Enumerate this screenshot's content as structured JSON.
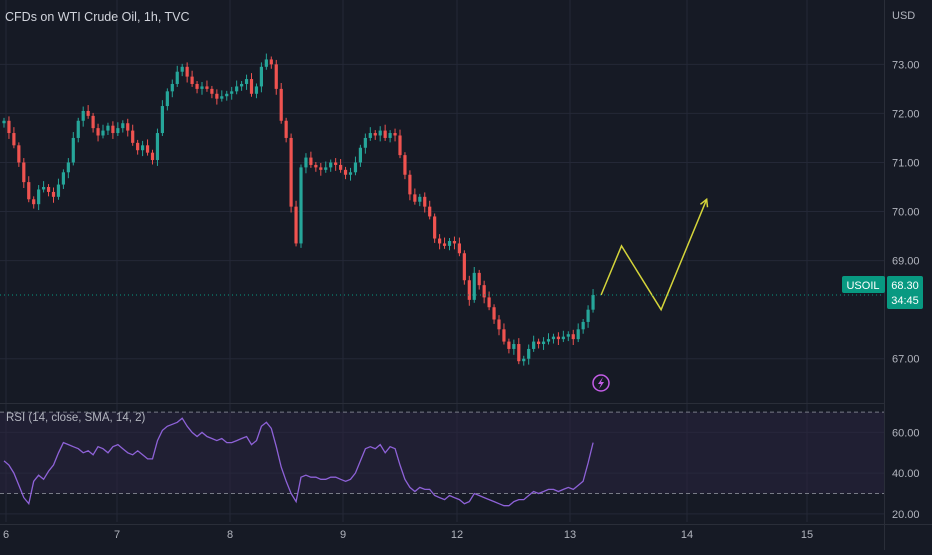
{
  "header": {
    "title": "CFDs on WTI Crude Oil, 1h, TVC"
  },
  "price_axis": {
    "currency": "USD"
  },
  "current_price": {
    "symbol": "USOIL",
    "value": "68.30",
    "countdown": "34:45"
  },
  "rsi_panel": {
    "label": "RSI (14, close, SMA, 14, 2)"
  },
  "colors": {
    "background": "#161a25",
    "grid": "#242837",
    "up": "#26a69a",
    "down": "#ef5350",
    "rsi_line": "#8e62d8",
    "rsi_band": "#2a2440",
    "projection": "#d4d43a",
    "axis_text": "#b2b5be",
    "price_tag": "#089981"
  },
  "chart_data": [
    {
      "type": "candlestick",
      "title": "CFDs on WTI Crude Oil, 1h, TVC",
      "x_ticks": [
        "6",
        "7",
        "8",
        "9",
        "12",
        "13",
        "14",
        "15"
      ],
      "y_ticks": [
        "73.00",
        "72.00",
        "71.00",
        "70.00",
        "69.00",
        "67.00"
      ],
      "ylim": [
        66.2,
        73.7
      ],
      "current_price": 68.3,
      "closes": [
        71.85,
        71.6,
        71.35,
        71.0,
        70.6,
        70.25,
        70.15,
        70.45,
        70.5,
        70.4,
        70.3,
        70.55,
        70.8,
        71.0,
        71.5,
        71.85,
        72.05,
        71.95,
        71.7,
        71.55,
        71.65,
        71.75,
        71.6,
        71.7,
        71.8,
        71.65,
        71.4,
        71.25,
        71.35,
        71.2,
        71.05,
        71.6,
        72.15,
        72.45,
        72.6,
        72.85,
        72.95,
        72.75,
        72.6,
        72.5,
        72.55,
        72.5,
        72.4,
        72.3,
        72.35,
        72.4,
        72.45,
        72.55,
        72.6,
        72.7,
        72.4,
        72.55,
        72.95,
        73.1,
        73.0,
        72.5,
        71.85,
        71.5,
        70.1,
        69.35,
        70.9,
        71.1,
        70.95,
        70.9,
        70.85,
        70.9,
        71.0,
        70.95,
        70.85,
        70.75,
        70.8,
        71.0,
        71.3,
        71.5,
        71.6,
        71.55,
        71.65,
        71.5,
        71.6,
        71.55,
        71.15,
        70.75,
        70.35,
        70.2,
        70.3,
        70.1,
        69.9,
        69.45,
        69.35,
        69.3,
        69.4,
        69.35,
        69.15,
        68.6,
        68.2,
        68.75,
        68.5,
        68.25,
        68.05,
        67.8,
        67.6,
        67.35,
        67.2,
        67.3,
        66.95,
        67.0,
        67.2,
        67.35,
        67.3,
        67.35,
        67.4,
        67.45,
        67.4,
        67.45,
        67.5,
        67.4,
        67.6,
        67.75,
        68.0,
        68.3
      ],
      "projection": {
        "points": [
          [
            0,
            68.3
          ],
          [
            17,
            69.3
          ],
          [
            50,
            68.0
          ],
          [
            88,
            70.25
          ]
        ]
      }
    },
    {
      "type": "line",
      "title": "RSI (14, close, SMA, 14, 2)",
      "y_ticks": [
        "60.00",
        "40.00",
        "20.00"
      ],
      "ylim": [
        16,
        72
      ],
      "bands": [
        30,
        70
      ],
      "values": [
        46,
        44,
        40,
        34,
        28,
        25,
        36,
        39,
        37,
        41,
        44,
        50,
        55,
        54,
        53,
        52,
        50,
        51,
        49,
        53,
        52,
        50,
        53,
        54,
        52,
        50,
        49,
        51,
        49,
        47,
        47,
        56,
        61,
        63,
        64,
        65,
        67,
        63,
        60,
        58,
        60,
        58,
        57,
        56,
        57,
        55,
        55,
        56,
        57,
        58,
        54,
        56,
        63,
        65,
        62,
        53,
        43,
        36,
        30,
        26,
        38,
        39,
        38,
        38,
        37,
        37,
        38,
        38,
        37,
        36,
        37,
        40,
        46,
        52,
        53,
        52,
        54,
        50,
        53,
        52,
        44,
        37,
        33,
        31,
        33,
        32,
        32,
        29,
        28,
        27,
        29,
        28,
        27,
        25,
        26,
        30,
        29,
        28,
        27,
        26,
        25,
        24,
        24,
        26,
        27,
        27,
        29,
        31,
        30,
        31,
        32,
        32,
        31,
        32,
        33,
        32,
        34,
        36,
        45,
        55
      ]
    }
  ]
}
